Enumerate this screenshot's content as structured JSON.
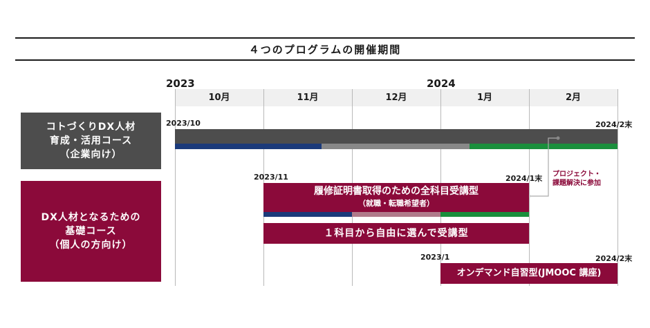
{
  "title": "４つのプログラムの開催期間",
  "years": [
    "2023",
    "2024"
  ],
  "months": [
    "10月",
    "11月",
    "12月",
    "1月",
    "2月"
  ],
  "courses": [
    {
      "lines": [
        "コトづくりDX人材",
        "育成・活用コース",
        "（企業向け）"
      ],
      "color": "#4d4d4d"
    },
    {
      "lines": [
        "DX人材となるための",
        "基礎コース",
        "（個人の方向け）"
      ],
      "color": "#8b0a3a"
    }
  ],
  "programs": {
    "corporate": {
      "start_label": "2023/10",
      "end_label": "2024/2末"
    },
    "full": {
      "start_label": "2023/11",
      "end_label": "2024/1末",
      "title": "履修証明書取得のための全科目受講型",
      "subtitle": "（就職・転職希望者）"
    },
    "single": {
      "title": "１科目から自由に選んで受講型"
    },
    "jmooc": {
      "start_label": "2023/1",
      "end_label": "2024/2末",
      "title": "オンデマンド自習型(JMOOC 講座)"
    }
  },
  "note": {
    "lines": [
      "プロジェクト・",
      "課題解決に参加"
    ]
  },
  "colors": {
    "dark_gray": "#4d4d4d",
    "crimson": "#8b0a3a",
    "navy": "#1b3a7a",
    "mid_gray": "#888888",
    "green": "#1a8f3c",
    "light_pink": "#b07a8a"
  }
}
